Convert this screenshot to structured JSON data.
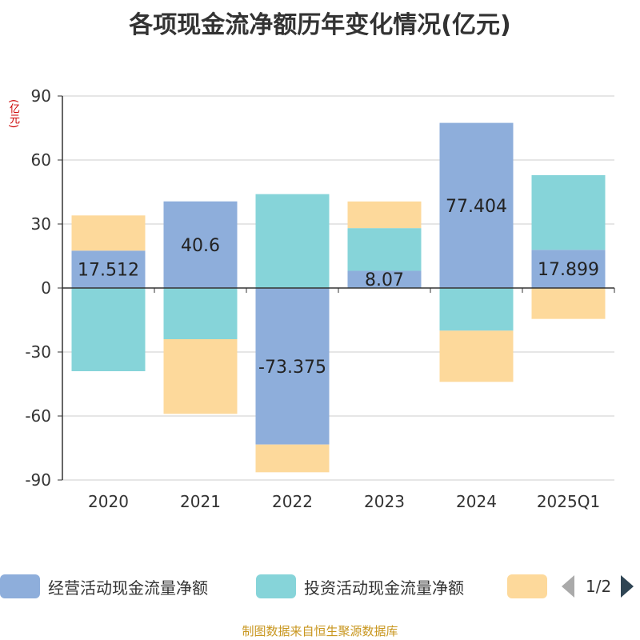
{
  "title": "各项现金流净额历年变化情况(亿元)",
  "unit_label": "(亿元)",
  "source": "制图数据来自恒生聚源数据库",
  "pager": {
    "text": "1/2"
  },
  "colors": {
    "operating": "#8eaedb",
    "investing": "#86d4d9",
    "financing": "#fdd99b",
    "axis": "#333333",
    "grid": "#cccccc"
  },
  "legend": [
    {
      "label": "经营活动现金流量净额",
      "color": "#8eaedb"
    },
    {
      "label": "投资活动现金流量净额",
      "color": "#86d4d9"
    },
    {
      "label": "",
      "color": "#fdd99b"
    }
  ],
  "chart_data": {
    "type": "bar",
    "stacked": true,
    "categories": [
      "2020",
      "2021",
      "2022",
      "2023",
      "2024",
      "2025Q1"
    ],
    "ylim": [
      -90,
      90
    ],
    "yticks": [
      90,
      60,
      30,
      0,
      -30,
      -60,
      -90
    ],
    "series": [
      {
        "name": "经营活动现金流量净额",
        "color": "#8eaedb",
        "values": [
          17.512,
          40.6,
          -73.375,
          8.07,
          77.404,
          17.899
        ],
        "labels": [
          "17.512",
          "40.6",
          "-73.375",
          "8.07",
          "77.404",
          "17.899"
        ]
      },
      {
        "name": "投资活动现金流量净额",
        "color": "#86d4d9",
        "values": [
          -39,
          -24,
          44,
          20,
          -20,
          35
        ]
      },
      {
        "color": "#fdd99b",
        "values": [
          16.5,
          -35,
          -13,
          12.5,
          -24,
          -14.5
        ]
      }
    ],
    "grid": true
  }
}
